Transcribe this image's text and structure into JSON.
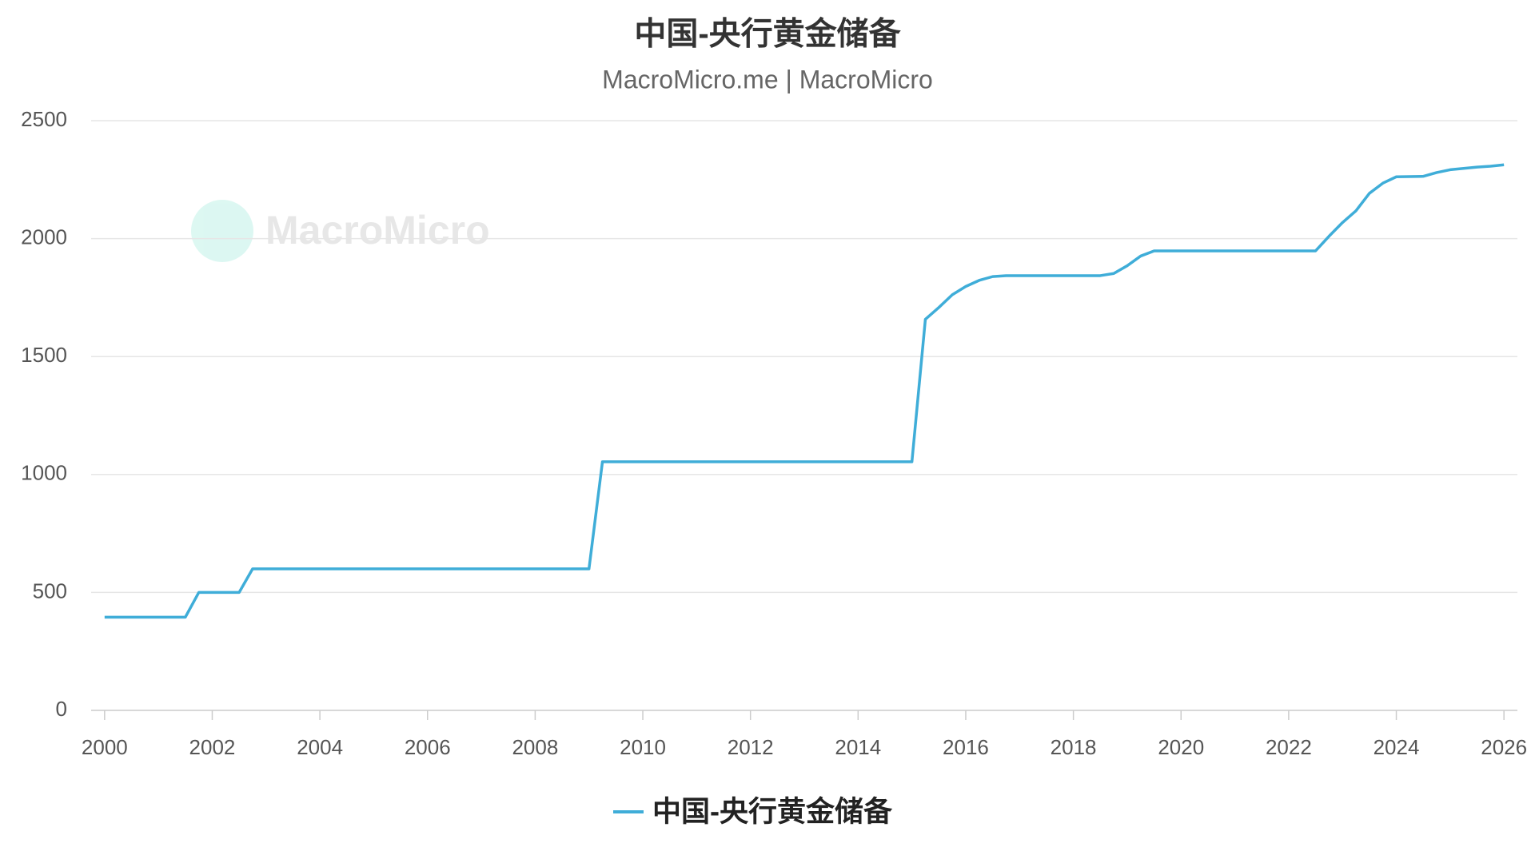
{
  "chart_data": {
    "type": "line",
    "title": "中国-央行黄金储备",
    "subtitle": "MacroMicro.me |  MacroMicro",
    "watermark": "MacroMicro",
    "x": [
      2000,
      2001.5,
      2001.75,
      2002.5,
      2002.75,
      2009.0,
      2009.25,
      2015.0,
      2015.25,
      2015.5,
      2015.75,
      2016.0,
      2016.25,
      2016.5,
      2016.75,
      2018.5,
      2018.75,
      2019.0,
      2019.25,
      2019.5,
      2022.5,
      2022.75,
      2023.0,
      2023.25,
      2023.5,
      2023.75,
      2024.0,
      2024.5,
      2024.75,
      2025.0,
      2025.5,
      2025.75,
      2026.0
    ],
    "series": [
      {
        "name": "中国-央行黄金储备",
        "color": "#3fadd8",
        "values": [
          395,
          395,
          500,
          500,
          600,
          600,
          1054,
          1054,
          1658,
          1708,
          1762,
          1797,
          1823,
          1839,
          1843,
          1843,
          1852,
          1885,
          1926,
          1948,
          1948,
          2010,
          2068,
          2118,
          2192,
          2235,
          2262,
          2264,
          2280,
          2292,
          2303,
          2307,
          2313
        ]
      }
    ],
    "xlim": [
      1999.75,
      2026.25
    ],
    "xticks": [
      2000,
      2002,
      2004,
      2006,
      2008,
      2010,
      2012,
      2014,
      2016,
      2018,
      2020,
      2022,
      2024,
      2026
    ],
    "ylim": [
      0,
      2500
    ],
    "yticks": [
      0,
      500,
      1000,
      1500,
      2000,
      2500
    ],
    "grid": true,
    "legend": "bottom"
  }
}
